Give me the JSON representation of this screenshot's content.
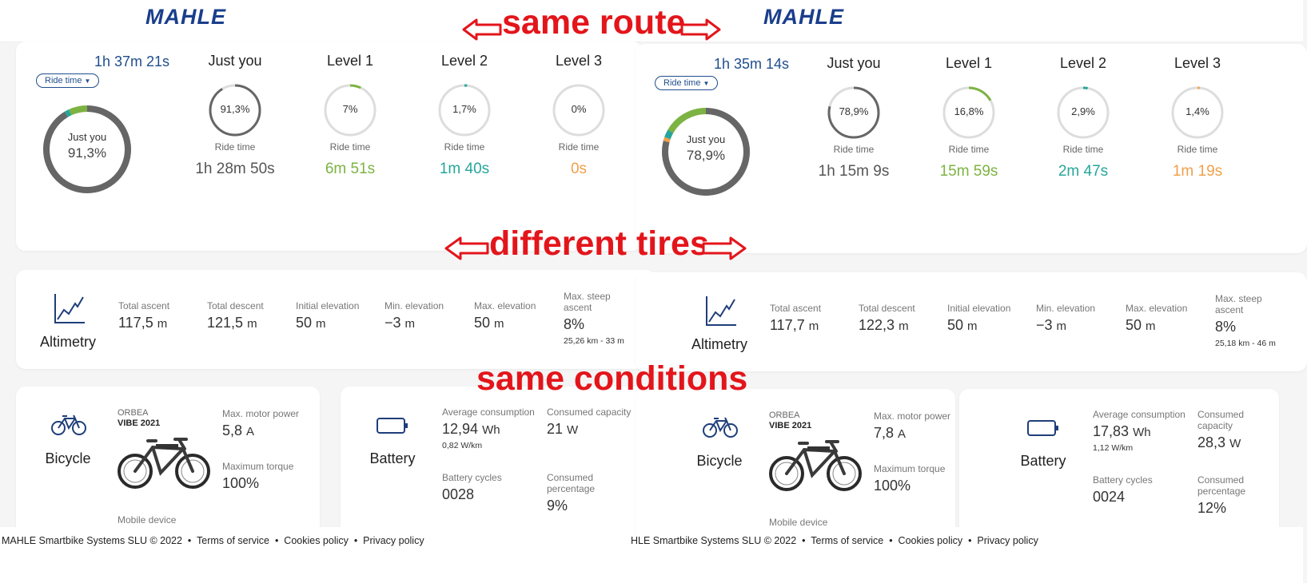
{
  "left": {
    "logo": "MAHLE",
    "ride_summary": {
      "total_time": "1h 37m 21s",
      "selector": "Ride time",
      "big_ring": {
        "label": "Just you",
        "value": "91,3%"
      },
      "levels": [
        {
          "name": "Just you",
          "percent": "91,3%",
          "percent_value": 91.3,
          "time_label": "Ride time",
          "time": "1h 28m 50s",
          "color": "#666666"
        },
        {
          "name": "Level 1",
          "percent": "7%",
          "percent_value": 7,
          "time_label": "Ride time",
          "time": "6m 51s",
          "color": "#7cb342"
        },
        {
          "name": "Level 2",
          "percent": "1,7%",
          "percent_value": 1.7,
          "time_label": "Ride time",
          "time": "1m 40s",
          "color": "#26a69a"
        },
        {
          "name": "Level 3",
          "percent": "0%",
          "percent_value": 0,
          "time_label": "Ride time",
          "time": "0s",
          "color": "#f0a04b"
        }
      ]
    },
    "altimetry": {
      "title": "Altimetry",
      "stats": [
        {
          "label": "Total ascent",
          "value": "117,5",
          "unit": "m"
        },
        {
          "label": "Total descent",
          "value": "121,5",
          "unit": "m"
        },
        {
          "label": "Initial elevation",
          "value": "50",
          "unit": "m"
        },
        {
          "label": "Min. elevation",
          "value": "−3",
          "unit": "m"
        },
        {
          "label": "Max. elevation",
          "value": "50",
          "unit": "m"
        },
        {
          "label": "Max. steep ascent",
          "value": "8%",
          "unit": "",
          "sub": "25,26 km - 33 m"
        }
      ]
    },
    "bicycle": {
      "title": "Bicycle",
      "brand": "ORBEA",
      "model": "VIBE 2021",
      "max_motor_power_label": "Max. motor power",
      "max_motor_power": "5,8",
      "max_motor_power_unit": "A",
      "max_torque_label": "Maximum torque",
      "max_torque": "100%",
      "mobile_device_label": "Mobile device"
    },
    "battery": {
      "title": "Battery",
      "avg_consumption_label": "Average consumption",
      "avg_consumption": "12,94",
      "avg_consumption_unit": "Wh",
      "avg_consumption_sub": "0,82 W/km",
      "consumed_capacity_label": "Consumed capacity",
      "consumed_capacity": "21",
      "consumed_capacity_unit": "W",
      "cycles_label": "Battery cycles",
      "cycles": "0028",
      "consumed_pct_label": "Consumed percentage",
      "consumed_pct": "9%"
    },
    "footer": {
      "copyright": "MAHLE Smartbike Systems SLU © 2022",
      "terms": "Terms of service",
      "cookies": "Cookies policy",
      "privacy": "Privacy policy"
    }
  },
  "right": {
    "logo": "MAHLE",
    "ride_summary": {
      "total_time": "1h 35m 14s",
      "selector": "Ride time",
      "big_ring": {
        "label": "Just you",
        "value": "78,9%"
      },
      "levels": [
        {
          "name": "Just you",
          "percent": "78,9%",
          "percent_value": 78.9,
          "time_label": "Ride time",
          "time": "1h 15m 9s",
          "color": "#666666"
        },
        {
          "name": "Level 1",
          "percent": "16,8%",
          "percent_value": 16.8,
          "time_label": "Ride time",
          "time": "15m 59s",
          "color": "#7cb342"
        },
        {
          "name": "Level 2",
          "percent": "2,9%",
          "percent_value": 2.9,
          "time_label": "Ride time",
          "time": "2m 47s",
          "color": "#26a69a"
        },
        {
          "name": "Level 3",
          "percent": "1,4%",
          "percent_value": 1.4,
          "time_label": "Ride time",
          "time": "1m 19s",
          "color": "#f0a04b"
        }
      ]
    },
    "altimetry": {
      "title": "Altimetry",
      "stats": [
        {
          "label": "Total ascent",
          "value": "117,7",
          "unit": "m"
        },
        {
          "label": "Total descent",
          "value": "122,3",
          "unit": "m"
        },
        {
          "label": "Initial elevation",
          "value": "50",
          "unit": "m"
        },
        {
          "label": "Min. elevation",
          "value": "−3",
          "unit": "m"
        },
        {
          "label": "Max. elevation",
          "value": "50",
          "unit": "m"
        },
        {
          "label": "Max. steep ascent",
          "value": "8%",
          "unit": "",
          "sub": "25,18 km - 46 m"
        }
      ]
    },
    "bicycle": {
      "title": "Bicycle",
      "brand": "ORBEA",
      "model": "VIBE 2021",
      "max_motor_power_label": "Max. motor power",
      "max_motor_power": "7,8",
      "max_motor_power_unit": "A",
      "max_torque_label": "Maximum torque",
      "max_torque": "100%",
      "mobile_device_label": "Mobile device"
    },
    "battery": {
      "title": "Battery",
      "avg_consumption_label": "Average consumption",
      "avg_consumption": "17,83",
      "avg_consumption_unit": "Wh",
      "avg_consumption_sub": "1,12 W/km",
      "consumed_capacity_label": "Consumed capacity",
      "consumed_capacity": "28,3",
      "consumed_capacity_unit": "W",
      "cycles_label": "Battery cycles",
      "cycles": "0024",
      "consumed_pct_label": "Consumed percentage",
      "consumed_pct": "12%"
    },
    "footer": {
      "copyright": "HLE Smartbike Systems SLU © 2022",
      "terms": "Terms of service",
      "cookies": "Cookies policy",
      "privacy": "Privacy policy"
    }
  },
  "annotations": {
    "same_route": "same route",
    "different_tires": "different tires",
    "same_conditions": "same conditions"
  },
  "colors": {
    "brand": "#1a3e8c",
    "annotation": "#e3151b",
    "level0": "#666666",
    "level1": "#7cb342",
    "level2": "#26a69a",
    "level3": "#f0a04b"
  }
}
